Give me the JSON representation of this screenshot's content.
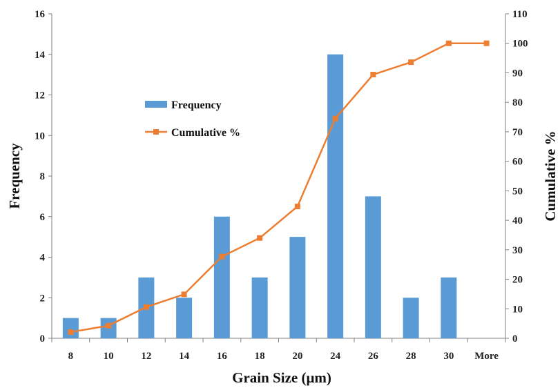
{
  "chart_data": {
    "type": "bar",
    "categories": [
      "8",
      "10",
      "12",
      "14",
      "16",
      "18",
      "20",
      "24",
      "26",
      "28",
      "30",
      "More"
    ],
    "series": [
      {
        "name": "Frequency",
        "type": "bar",
        "axis": "left",
        "color": "#5B9BD5",
        "values": [
          1,
          1,
          3,
          2,
          6,
          3,
          5,
          14,
          7,
          2,
          3,
          0
        ]
      },
      {
        "name": "Cumulative %",
        "type": "line",
        "axis": "right",
        "color": "#ED7D31",
        "values": [
          2.1,
          4.3,
          10.6,
          14.9,
          27.7,
          34.0,
          44.7,
          74.5,
          89.4,
          93.6,
          100,
          100
        ]
      }
    ],
    "xlabel": "Grain Size (μm)",
    "ylabel": "Frequency",
    "y2label": "Cumulative %",
    "ylim": [
      0,
      16
    ],
    "y2lim": [
      0,
      110
    ],
    "yticks": [
      "0",
      "2",
      "4",
      "6",
      "8",
      "10",
      "12",
      "14",
      "16"
    ],
    "y2ticks": [
      "0",
      "10",
      "20",
      "30",
      "40",
      "50",
      "60",
      "70",
      "80",
      "90",
      "100",
      "110"
    ],
    "grid": false,
    "legend_position": "upper-left-inside"
  }
}
